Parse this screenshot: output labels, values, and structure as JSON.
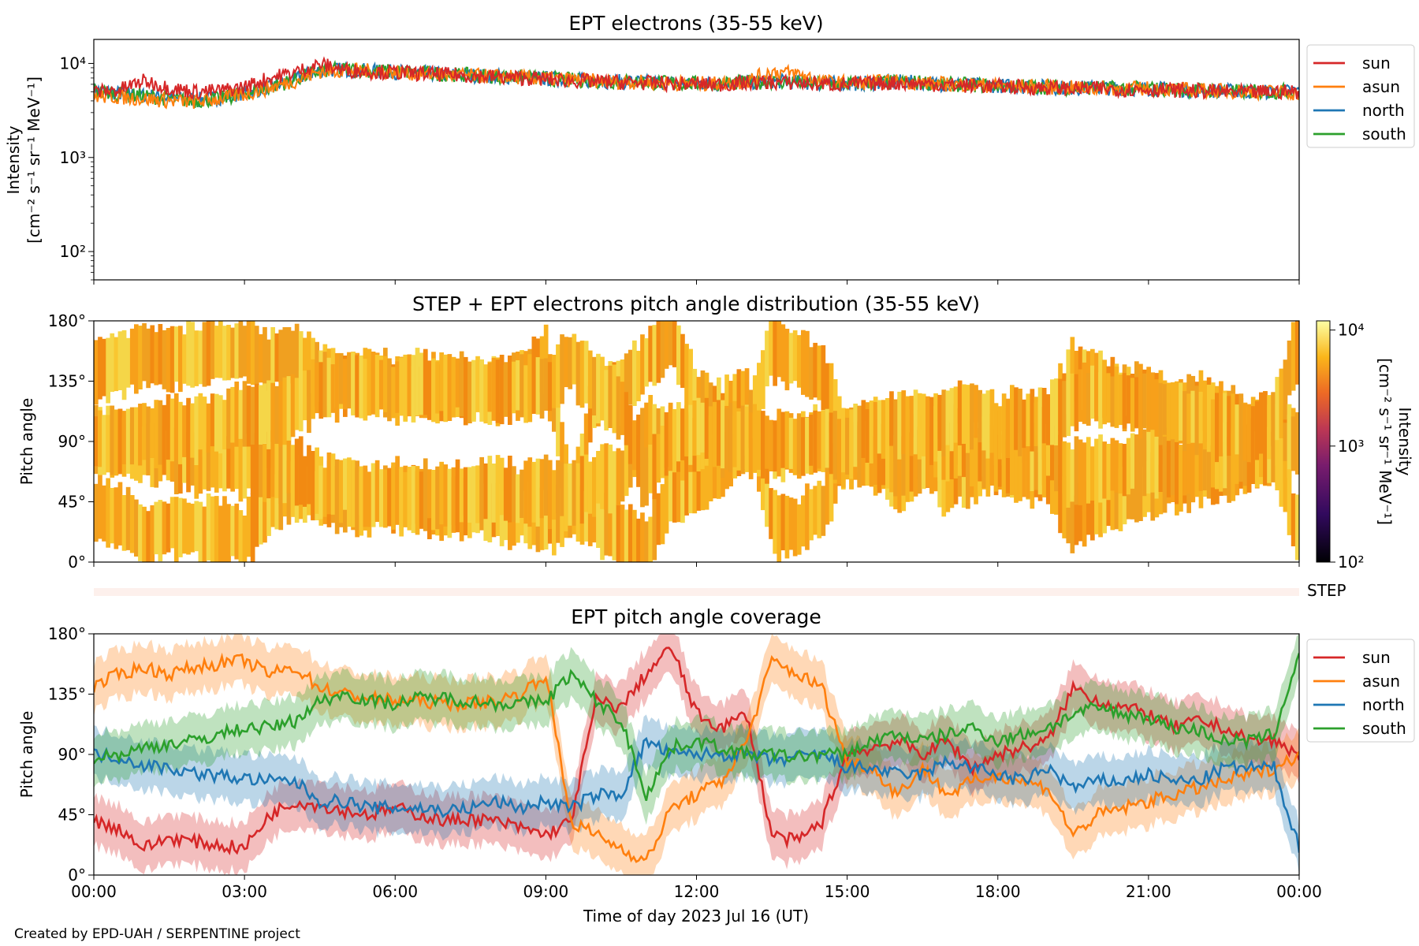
{
  "footer": "Created by EPD-UAH / SERPENTINE project",
  "colors": {
    "sun": "#d62728",
    "asun": "#ff7f0e",
    "north": "#1f77b4",
    "south": "#2ca02c"
  },
  "chart_data": [
    {
      "type": "line",
      "title": "EPT electrons (35-55 keV)",
      "ylabel_line1": "Intensity",
      "ylabel_line2": "[cm⁻² s⁻¹ sr⁻¹ MeV⁻¹]",
      "y_scale": "log",
      "ylim": [
        50,
        18000
      ],
      "y_ticks": [
        "10²",
        "10³",
        "10⁴"
      ],
      "x_range_hours": [
        0,
        24
      ],
      "legend_position": "outside-right-top",
      "x_hours": [
        0,
        0.5,
        1,
        1.5,
        2,
        2.5,
        3,
        3.5,
        4,
        4.5,
        5,
        5.5,
        6,
        6.5,
        7,
        7.5,
        8,
        8.5,
        9,
        9.5,
        10,
        10.5,
        11,
        11.5,
        12,
        12.5,
        13,
        13.5,
        14,
        14.5,
        15,
        15.5,
        16,
        16.5,
        17,
        17.5,
        18,
        18.5,
        19,
        19.5,
        20,
        20.5,
        21,
        21.5,
        22,
        22.5,
        23,
        23.5,
        24
      ],
      "series": [
        {
          "name": "sun",
          "color": "#d62728",
          "values": [
            5000,
            5200,
            6500,
            5500,
            5000,
            5100,
            5600,
            7000,
            8000,
            9800,
            8500,
            8200,
            8000,
            7800,
            7600,
            7400,
            7200,
            7000,
            6800,
            6600,
            6400,
            6300,
            6200,
            6100,
            6000,
            6000,
            6200,
            6300,
            6200,
            6000,
            6000,
            6100,
            6200,
            6100,
            5900,
            5800,
            5700,
            5600,
            5500,
            5400,
            5400,
            5300,
            5300,
            5200,
            5100,
            5000,
            4900,
            5000,
            5000
          ]
        },
        {
          "name": "asun",
          "color": "#ff7f0e",
          "values": [
            4500,
            4400,
            4200,
            4000,
            3900,
            4200,
            4700,
            5500,
            6500,
            8200,
            8500,
            8300,
            8100,
            7800,
            7600,
            7400,
            7300,
            7100,
            6900,
            6700,
            6500,
            6400,
            6300,
            6200,
            6100,
            6100,
            6400,
            8200,
            7800,
            6400,
            6200,
            6300,
            6500,
            6200,
            6000,
            5900,
            5800,
            5700,
            5600,
            5500,
            5500,
            5400,
            5400,
            5300,
            5200,
            5100,
            5000,
            5000,
            4800
          ]
        },
        {
          "name": "north",
          "color": "#1f77b4",
          "values": [
            5200,
            4800,
            4600,
            4300,
            4100,
            4300,
            4900,
            5600,
            6800,
            8400,
            8600,
            8300,
            8100,
            7900,
            7600,
            7500,
            7300,
            7100,
            6900,
            6700,
            6500,
            6400,
            6300,
            6200,
            6100,
            6100,
            6300,
            6500,
            6300,
            6100,
            6100,
            6200,
            6400,
            6200,
            6000,
            5900,
            5800,
            5700,
            5600,
            5500,
            5500,
            5400,
            5400,
            5300,
            5200,
            5100,
            5000,
            5000,
            5100
          ]
        },
        {
          "name": "south",
          "color": "#2ca02c",
          "values": [
            5100,
            4700,
            4500,
            4200,
            4000,
            4200,
            4800,
            5500,
            6700,
            8300,
            8700,
            8400,
            8200,
            7900,
            7700,
            7500,
            7300,
            7100,
            6900,
            6700,
            6500,
            6400,
            6300,
            6200,
            6100,
            6100,
            6300,
            6400,
            6300,
            6100,
            6100,
            6200,
            6300,
            6300,
            6000,
            5900,
            5800,
            5700,
            5600,
            5500,
            5500,
            5400,
            5400,
            5300,
            5200,
            5100,
            5000,
            5000,
            5200
          ]
        }
      ]
    },
    {
      "type": "heatmap",
      "title": "STEP + EPT electrons pitch angle distribution (35-55 keV)",
      "ylabel": "Pitch angle",
      "ylim": [
        0,
        180
      ],
      "y_ticks": [
        "0°",
        "45°",
        "90°",
        "135°",
        "180°"
      ],
      "x_range_hours": [
        0,
        24
      ],
      "colorbar": {
        "label_line1": "Intensity",
        "label_line2": "[cm⁻² s⁻¹ sr⁻¹ MeV⁻¹]",
        "scale": "log",
        "range": [
          100,
          12000
        ],
        "ticks": [
          "10²",
          "10³",
          "10⁴"
        ],
        "colormap": "inferno"
      },
      "strip_label": "STEP"
    },
    {
      "type": "line",
      "title": "EPT pitch angle coverage",
      "ylabel": "Pitch angle",
      "xlabel": "Time of day 2023 Jul 16 (UT)",
      "ylim": [
        0,
        180
      ],
      "y_ticks": [
        "0°",
        "45°",
        "90°",
        "135°",
        "180°"
      ],
      "x_ticks": [
        "00:00",
        "03:00",
        "06:00",
        "09:00",
        "12:00",
        "15:00",
        "18:00",
        "21:00",
        "00:00"
      ],
      "x_range_hours": [
        0,
        24
      ],
      "legend_position": "outside-right-top",
      "band_halfwidth_deg": 18,
      "x_hours": [
        0,
        0.5,
        1,
        1.5,
        2,
        2.5,
        3,
        3.5,
        4,
        4.5,
        5,
        5.5,
        6,
        6.5,
        7,
        7.5,
        8,
        8.5,
        9,
        9.5,
        10,
        10.5,
        11,
        11.5,
        12,
        12.5,
        13,
        13.5,
        14,
        14.5,
        15,
        15.5,
        16,
        16.5,
        17,
        17.5,
        18,
        18.5,
        19,
        19.5,
        20,
        20.5,
        21,
        21.5,
        22,
        22.5,
        23,
        23.5,
        24
      ],
      "series": [
        {
          "name": "sun",
          "color": "#d62728",
          "values": [
            40,
            35,
            20,
            28,
            25,
            22,
            20,
            45,
            55,
            52,
            48,
            45,
            50,
            45,
            40,
            42,
            40,
            35,
            30,
            40,
            130,
            125,
            150,
            170,
            120,
            110,
            120,
            30,
            25,
            40,
            90,
            95,
            100,
            90,
            100,
            80,
            90,
            95,
            100,
            140,
            130,
            125,
            120,
            110,
            115,
            110,
            100,
            100,
            90
          ]
        },
        {
          "name": "asun",
          "color": "#ff7f0e",
          "values": [
            140,
            150,
            155,
            150,
            155,
            158,
            160,
            150,
            155,
            140,
            135,
            132,
            130,
            130,
            128,
            128,
            130,
            135,
            150,
            40,
            30,
            20,
            10,
            50,
            60,
            70,
            100,
            160,
            150,
            140,
            85,
            80,
            60,
            80,
            60,
            70,
            75,
            70,
            65,
            30,
            45,
            50,
            55,
            60,
            65,
            70,
            75,
            80,
            90
          ]
        },
        {
          "name": "north",
          "color": "#1f77b4",
          "values": [
            90,
            88,
            82,
            80,
            76,
            74,
            72,
            70,
            70,
            55,
            55,
            50,
            50,
            50,
            48,
            50,
            55,
            50,
            55,
            50,
            60,
            60,
            100,
            90,
            90,
            90,
            90,
            85,
            88,
            90,
            80,
            80,
            75,
            75,
            85,
            80,
            75,
            70,
            80,
            65,
            70,
            70,
            75,
            70,
            70,
            80,
            80,
            80,
            20
          ]
        },
        {
          "name": "south",
          "color": "#2ca02c",
          "values": [
            88,
            90,
            95,
            98,
            100,
            105,
            110,
            110,
            115,
            130,
            135,
            130,
            128,
            132,
            132,
            130,
            128,
            128,
            130,
            150,
            130,
            115,
            60,
            95,
            100,
            95,
            90,
            90,
            88,
            90,
            90,
            100,
            105,
            100,
            105,
            110,
            100,
            105,
            110,
            120,
            125,
            120,
            118,
            110,
            108,
            100,
            100,
            105,
            165
          ]
        }
      ]
    }
  ]
}
